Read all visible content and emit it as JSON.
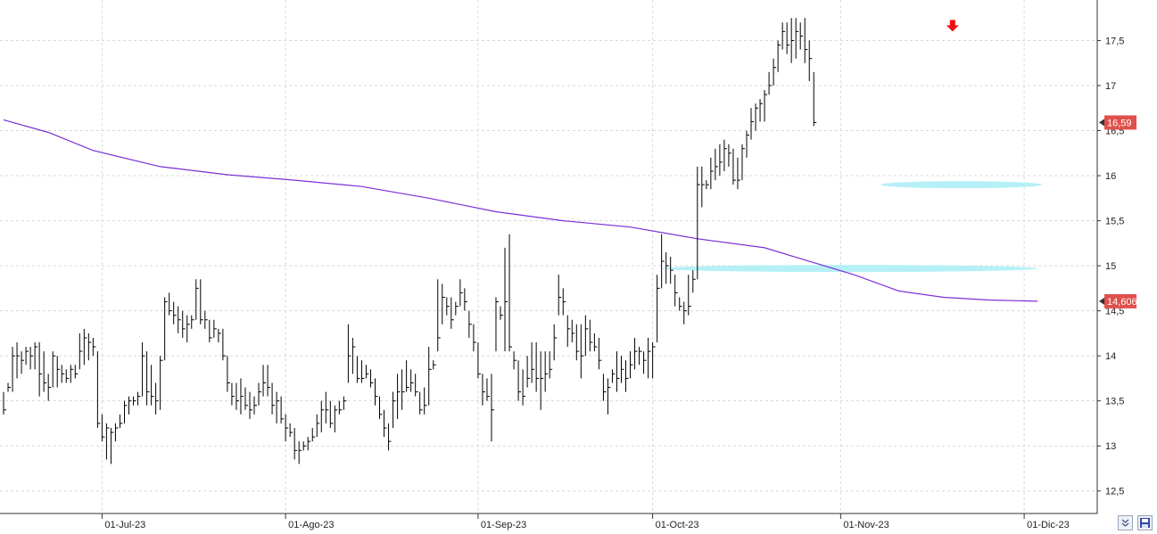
{
  "chart_data": {
    "type": "ohlc",
    "x_labels": [
      {
        "label": "01-Jul-23",
        "index": 22
      },
      {
        "label": "01-Ago-23",
        "index": 63
      },
      {
        "label": "01-Sep-23",
        "index": 106
      },
      {
        "label": "01-Oct-23",
        "index": 145
      },
      {
        "label": "01-Nov-23",
        "index": 187
      },
      {
        "label": "01-Dic-23",
        "index": 228
      }
    ],
    "yticks": [
      "12,5",
      "13",
      "13,5",
      "14",
      "14,5",
      "15",
      "15,5",
      "16",
      "16,5",
      "17",
      "17,5"
    ],
    "ylim": [
      12.25,
      17.95
    ],
    "grid": true,
    "ohlc": [
      [
        13.6,
        13.35,
        13.4
      ],
      [
        13.7,
        13.6,
        13.65
      ],
      [
        14.1,
        13.6,
        14.0
      ],
      [
        14.15,
        13.75,
        14.0
      ],
      [
        14.05,
        13.8,
        13.95
      ],
      [
        14.1,
        13.9,
        14.05
      ],
      [
        14.1,
        13.85,
        14.0
      ],
      [
        14.15,
        13.85,
        14.1
      ],
      [
        14.15,
        13.55,
        13.8
      ],
      [
        14.05,
        13.6,
        13.7
      ],
      [
        13.8,
        13.5,
        13.65
      ],
      [
        14.05,
        13.65,
        14.0
      ],
      [
        14.0,
        13.65,
        13.85
      ],
      [
        13.9,
        13.7,
        13.8
      ],
      [
        13.85,
        13.7,
        13.75
      ],
      [
        13.9,
        13.7,
        13.85
      ],
      [
        13.9,
        13.75,
        13.8
      ],
      [
        14.25,
        13.85,
        14.05
      ],
      [
        14.3,
        13.9,
        14.2
      ],
      [
        14.25,
        13.95,
        14.15
      ],
      [
        14.2,
        14.0,
        14.1
      ],
      [
        14.05,
        13.2,
        13.25
      ],
      [
        13.35,
        13.05,
        13.1
      ],
      [
        13.25,
        12.85,
        13.2
      ],
      [
        13.2,
        12.8,
        13.15
      ],
      [
        13.25,
        13.05,
        13.2
      ],
      [
        13.35,
        13.2,
        13.25
      ],
      [
        13.5,
        13.25,
        13.45
      ],
      [
        13.55,
        13.35,
        13.5
      ],
      [
        13.55,
        13.45,
        13.5
      ],
      [
        13.6,
        13.45,
        13.55
      ],
      [
        14.15,
        13.55,
        14.0
      ],
      [
        14.05,
        13.45,
        13.6
      ],
      [
        13.9,
        13.45,
        13.55
      ],
      [
        13.7,
        13.35,
        13.5
      ],
      [
        14.0,
        13.4,
        13.95
      ],
      [
        14.65,
        13.95,
        14.6
      ],
      [
        14.7,
        14.45,
        14.5
      ],
      [
        14.6,
        14.35,
        14.45
      ],
      [
        14.55,
        14.25,
        14.4
      ],
      [
        14.5,
        14.2,
        14.3
      ],
      [
        14.45,
        14.15,
        14.35
      ],
      [
        14.45,
        14.3,
        14.4
      ],
      [
        14.85,
        14.4,
        14.75
      ],
      [
        14.85,
        14.35,
        14.4
      ],
      [
        14.5,
        14.3,
        14.4
      ],
      [
        14.4,
        14.15,
        14.2
      ],
      [
        14.4,
        14.2,
        14.3
      ],
      [
        14.3,
        14.15,
        14.25
      ],
      [
        14.3,
        13.95,
        14.0
      ],
      [
        14.0,
        13.6,
        13.7
      ],
      [
        13.7,
        13.45,
        13.55
      ],
      [
        13.7,
        13.4,
        13.5
      ],
      [
        13.75,
        13.35,
        13.55
      ],
      [
        13.65,
        13.4,
        13.45
      ],
      [
        13.6,
        13.3,
        13.4
      ],
      [
        13.55,
        13.35,
        13.45
      ],
      [
        13.7,
        13.45,
        13.6
      ],
      [
        13.9,
        13.55,
        13.7
      ],
      [
        13.9,
        13.55,
        13.65
      ],
      [
        13.7,
        13.35,
        13.45
      ],
      [
        13.6,
        13.25,
        13.5
      ],
      [
        13.55,
        13.25,
        13.3
      ],
      [
        13.35,
        13.05,
        13.2
      ],
      [
        13.25,
        13.1,
        13.15
      ],
      [
        13.2,
        12.85,
        12.95
      ],
      [
        13.05,
        12.8,
        12.95
      ],
      [
        13.05,
        12.95,
        13.0
      ],
      [
        13.1,
        12.95,
        13.05
      ],
      [
        13.2,
        13.05,
        13.1
      ],
      [
        13.35,
        13.1,
        13.25
      ],
      [
        13.5,
        13.15,
        13.4
      ],
      [
        13.6,
        13.25,
        13.4
      ],
      [
        13.5,
        13.2,
        13.25
      ],
      [
        13.45,
        13.15,
        13.4
      ],
      [
        13.5,
        13.35,
        13.4
      ],
      [
        13.55,
        13.4,
        13.5
      ],
      [
        14.35,
        13.7,
        14.0
      ],
      [
        14.2,
        13.8,
        14.1
      ],
      [
        14.0,
        13.7,
        13.75
      ],
      [
        13.95,
        13.7,
        13.75
      ],
      [
        13.9,
        13.75,
        13.8
      ],
      [
        13.85,
        13.65,
        13.7
      ],
      [
        13.75,
        13.45,
        13.55
      ],
      [
        13.55,
        13.3,
        13.35
      ],
      [
        13.4,
        13.1,
        13.2
      ],
      [
        13.25,
        12.95,
        13.05
      ],
      [
        13.6,
        13.2,
        13.5
      ],
      [
        13.8,
        13.3,
        13.6
      ],
      [
        13.85,
        13.4,
        13.6
      ],
      [
        13.95,
        13.6,
        13.65
      ],
      [
        13.85,
        13.6,
        13.7
      ],
      [
        13.8,
        13.55,
        13.6
      ],
      [
        13.6,
        13.35,
        13.4
      ],
      [
        13.65,
        13.35,
        13.45
      ],
      [
        14.1,
        13.45,
        13.85
      ],
      [
        13.95,
        13.85,
        13.9
      ],
      [
        14.85,
        14.05,
        14.2
      ],
      [
        14.8,
        14.35,
        14.65
      ],
      [
        14.65,
        14.45,
        14.55
      ],
      [
        14.65,
        14.3,
        14.4
      ],
      [
        14.6,
        14.45,
        14.55
      ],
      [
        14.85,
        14.55,
        14.7
      ],
      [
        14.75,
        14.5,
        14.6
      ],
      [
        14.5,
        14.2,
        14.35
      ],
      [
        14.35,
        14.05,
        14.15
      ],
      [
        14.15,
        13.75,
        13.8
      ],
      [
        13.8,
        13.45,
        13.6
      ],
      [
        13.75,
        13.5,
        13.55
      ],
      [
        13.8,
        13.05,
        13.4
      ],
      [
        14.65,
        14.05,
        14.6
      ],
      [
        14.55,
        14.4,
        14.45
      ],
      [
        15.2,
        14.05,
        14.6
      ],
      [
        15.35,
        14.05,
        14.1
      ],
      [
        14.05,
        13.85,
        13.95
      ],
      [
        13.95,
        13.5,
        13.6
      ],
      [
        13.85,
        13.45,
        13.55
      ],
      [
        14.0,
        13.65,
        13.75
      ],
      [
        14.15,
        13.7,
        13.85
      ],
      [
        14.15,
        13.6,
        13.75
      ],
      [
        14.05,
        13.4,
        13.75
      ],
      [
        14.05,
        13.6,
        13.8
      ],
      [
        14.05,
        13.75,
        13.85
      ],
      [
        14.35,
        13.95,
        14.2
      ],
      [
        14.9,
        14.45,
        14.65
      ],
      [
        14.75,
        14.45,
        14.6
      ],
      [
        14.45,
        14.1,
        14.3
      ],
      [
        14.4,
        14.15,
        14.25
      ],
      [
        14.35,
        13.95,
        14.05
      ],
      [
        14.35,
        13.75,
        14.0
      ],
      [
        14.45,
        14.0,
        14.3
      ],
      [
        14.4,
        14.05,
        14.15
      ],
      [
        14.25,
        14.05,
        14.1
      ],
      [
        14.2,
        13.85,
        13.95
      ],
      [
        13.8,
        13.5,
        13.6
      ],
      [
        13.75,
        13.35,
        13.65
      ],
      [
        13.85,
        13.7,
        13.8
      ],
      [
        14.05,
        13.6,
        13.75
      ],
      [
        14.0,
        13.7,
        13.85
      ],
      [
        13.95,
        13.6,
        13.75
      ],
      [
        14.05,
        13.75,
        13.9
      ],
      [
        14.2,
        13.85,
        14.05
      ],
      [
        14.1,
        13.9,
        14.05
      ],
      [
        14.05,
        13.8,
        13.95
      ],
      [
        14.2,
        13.75,
        14.05
      ],
      [
        14.15,
        13.75,
        14.1
      ],
      [
        14.9,
        14.15,
        14.75
      ],
      [
        15.35,
        14.75,
        15.05
      ],
      [
        15.15,
        14.8,
        15.0
      ],
      [
        15.1,
        14.8,
        14.95
      ],
      [
        14.9,
        14.55,
        14.7
      ],
      [
        14.65,
        14.5,
        14.55
      ],
      [
        14.6,
        14.35,
        14.5
      ],
      [
        14.9,
        14.45,
        14.55
      ],
      [
        14.95,
        14.7,
        14.85
      ],
      [
        16.1,
        14.85,
        15.9
      ],
      [
        16.1,
        15.65,
        15.9
      ],
      [
        15.95,
        15.85,
        15.9
      ],
      [
        16.2,
        15.85,
        16.05
      ],
      [
        16.3,
        15.95,
        16.1
      ],
      [
        16.35,
        16.0,
        16.15
      ],
      [
        16.4,
        16.05,
        16.3
      ],
      [
        16.35,
        16.1,
        16.25
      ],
      [
        16.3,
        15.9,
        15.95
      ],
      [
        16.2,
        15.85,
        15.95
      ],
      [
        16.35,
        15.95,
        16.3
      ],
      [
        16.5,
        16.2,
        16.45
      ],
      [
        16.75,
        16.4,
        16.6
      ],
      [
        16.8,
        16.5,
        16.75
      ],
      [
        16.85,
        16.6,
        16.8
      ],
      [
        16.95,
        16.6,
        16.9
      ],
      [
        17.15,
        16.9,
        17.0
      ],
      [
        17.3,
        17.0,
        17.2
      ],
      [
        17.5,
        17.15,
        17.45
      ],
      [
        17.7,
        17.4,
        17.6
      ],
      [
        17.7,
        17.35,
        17.45
      ],
      [
        17.75,
        17.25,
        17.5
      ],
      [
        17.75,
        17.3,
        17.6
      ],
      [
        17.7,
        17.4,
        17.55
      ],
      [
        17.75,
        17.25,
        17.4
      ],
      [
        17.5,
        17.05,
        17.3
      ],
      [
        17.15,
        16.55,
        16.59
      ]
    ],
    "x_start_index": 0,
    "ma_line": {
      "color": "#7b2fd6",
      "label": "14,606",
      "points": [
        [
          0,
          16.62
        ],
        [
          10,
          16.48
        ],
        [
          20,
          16.28
        ],
        [
          35,
          16.1
        ],
        [
          50,
          16.01
        ],
        [
          65,
          15.95
        ],
        [
          80,
          15.88
        ],
        [
          95,
          15.75
        ],
        [
          110,
          15.6
        ],
        [
          125,
          15.5
        ],
        [
          140,
          15.43
        ],
        [
          155,
          15.3
        ],
        [
          170,
          15.2
        ],
        [
          180,
          15.05
        ],
        [
          190,
          14.9
        ],
        [
          200,
          14.72
        ],
        [
          210,
          14.65
        ],
        [
          220,
          14.62
        ],
        [
          231,
          14.606
        ]
      ]
    },
    "last_price": {
      "label": "16,59",
      "value": 16.59
    },
    "support_zones": [
      {
        "value": 15.9,
        "x_start_index": 196,
        "x_end_index": 232
      },
      {
        "value": 14.97,
        "x_start_index": 147,
        "x_end_index": 231
      }
    ],
    "marker": {
      "x_index": 212,
      "value": 17.55
    },
    "colors": {
      "bars": "#000000",
      "grid": "#d8d8d8",
      "zone": "#b5f0f7",
      "badge": "#e0504a",
      "marker": "#ee1111"
    }
  }
}
